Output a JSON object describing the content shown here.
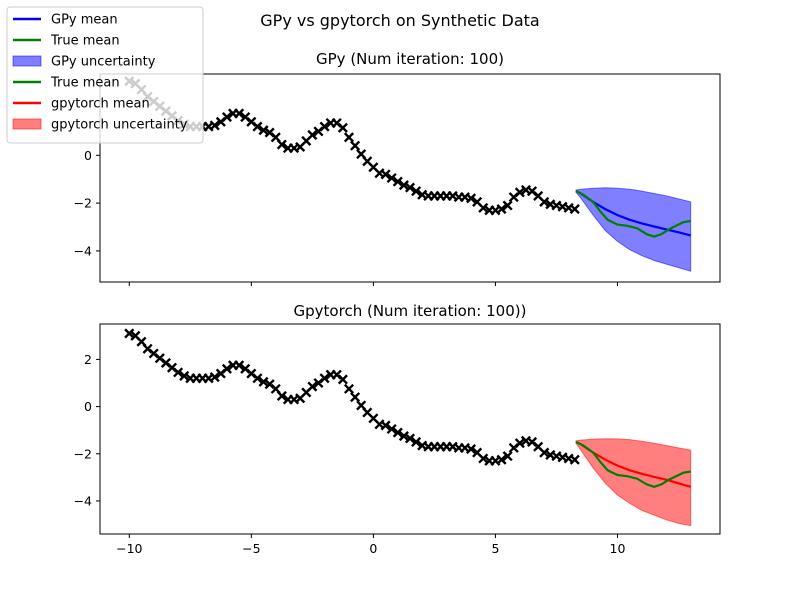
{
  "figure": {
    "title": "GPy vs gpytorch on Synthetic Data",
    "colors": {
      "gpy_mean": "#0000ff",
      "true_mean": "#008000",
      "gpy_fill": "#0000ff",
      "gpytorch_mean": "#ff0000",
      "gpytorch_fill": "#ff0000",
      "observations": "#000000"
    }
  },
  "legend": {
    "placement": "top-left",
    "entries": [
      {
        "label": "GPy mean",
        "kind": "line",
        "color": "#0000ff"
      },
      {
        "label": "True mean",
        "kind": "line",
        "color": "#008000"
      },
      {
        "label": "GPy uncertainty",
        "kind": "patch",
        "color": "#0000ff"
      },
      {
        "label": "True mean",
        "kind": "line",
        "color": "#008000"
      },
      {
        "label": "gpytorch mean",
        "kind": "line",
        "color": "#ff0000"
      },
      {
        "label": "gpytorch uncertainty",
        "kind": "patch",
        "color": "#ff0000"
      }
    ]
  },
  "chart_data": [
    {
      "type": "line",
      "title": "GPy (Num iteration: 100)",
      "xlim": [
        -11.2,
        14.2
      ],
      "ylim": [
        -5.3,
        3.4
      ],
      "xticks": [
        -10,
        -5,
        0,
        5,
        10
      ],
      "xtick_labels": [
        "",
        "",
        "",
        "",
        ""
      ],
      "yticks": [
        -4,
        -2,
        0
      ],
      "ytick_labels": [
        "−4",
        "−2",
        "0"
      ],
      "grid": false,
      "observations": {
        "marker": "x",
        "x": [
          -10.0,
          -9.75,
          -9.5,
          -9.25,
          -9.0,
          -8.75,
          -8.5,
          -8.25,
          -8.0,
          -7.75,
          -7.5,
          -7.25,
          -7.0,
          -6.75,
          -6.5,
          -6.25,
          -6.0,
          -5.75,
          -5.5,
          -5.25,
          -5.0,
          -4.75,
          -4.5,
          -4.25,
          -4.0,
          -3.75,
          -3.5,
          -3.25,
          -3.0,
          -2.75,
          -2.5,
          -2.25,
          -2.0,
          -1.75,
          -1.5,
          -1.25,
          -1.0,
          -0.75,
          -0.5,
          -0.25,
          0.0,
          0.25,
          0.5,
          0.75,
          1.0,
          1.25,
          1.5,
          1.75,
          2.0,
          2.25,
          2.5,
          2.75,
          3.0,
          3.25,
          3.5,
          3.75,
          4.0,
          4.25,
          4.5,
          4.75,
          5.0,
          5.25,
          5.5,
          5.75,
          6.0,
          6.25,
          6.5,
          6.75,
          7.0,
          7.25,
          7.5,
          7.75,
          8.0,
          8.25
        ],
        "y": [
          3.1,
          3.0,
          2.75,
          2.45,
          2.25,
          2.05,
          1.85,
          1.65,
          1.45,
          1.3,
          1.2,
          1.2,
          1.2,
          1.2,
          1.25,
          1.4,
          1.6,
          1.75,
          1.75,
          1.6,
          1.4,
          1.2,
          1.05,
          0.95,
          0.75,
          0.45,
          0.3,
          0.3,
          0.35,
          0.6,
          0.85,
          1.0,
          1.2,
          1.35,
          1.35,
          1.15,
          0.75,
          0.4,
          0.05,
          -0.25,
          -0.5,
          -0.75,
          -0.8,
          -0.95,
          -1.1,
          -1.25,
          -1.35,
          -1.5,
          -1.65,
          -1.7,
          -1.7,
          -1.7,
          -1.7,
          -1.7,
          -1.75,
          -1.75,
          -1.8,
          -1.95,
          -2.2,
          -2.3,
          -2.3,
          -2.25,
          -2.1,
          -1.75,
          -1.55,
          -1.45,
          -1.5,
          -1.7,
          -1.95,
          -2.05,
          -2.1,
          -2.15,
          -2.2,
          -2.25
        ]
      },
      "series": [
        {
          "name": "GPy mean",
          "color": "#0000ff",
          "x": [
            8.3,
            8.5,
            9.0,
            9.5,
            10.0,
            10.5,
            11.0,
            11.5,
            12.0,
            12.5,
            13.0
          ],
          "y": [
            -1.5,
            -1.6,
            -1.95,
            -2.25,
            -2.5,
            -2.7,
            -2.85,
            -2.98,
            -3.1,
            -3.22,
            -3.35
          ]
        },
        {
          "name": "True mean",
          "color": "#008000",
          "x": [
            8.3,
            8.6,
            9.0,
            9.3,
            9.6,
            10.0,
            10.4,
            10.8,
            11.2,
            11.5,
            11.8,
            12.1,
            12.4,
            12.7,
            13.0
          ],
          "y": [
            -1.5,
            -1.65,
            -1.95,
            -2.35,
            -2.7,
            -2.9,
            -2.95,
            -3.05,
            -3.3,
            -3.4,
            -3.3,
            -3.1,
            -2.95,
            -2.8,
            -2.75
          ]
        }
      ],
      "bands": [
        {
          "name": "GPy uncertainty",
          "color": "#0000ff",
          "x": [
            8.3,
            8.5,
            9.0,
            9.5,
            10.0,
            10.5,
            11.0,
            11.5,
            12.0,
            12.5,
            13.0
          ],
          "upper": [
            -1.45,
            -1.42,
            -1.38,
            -1.36,
            -1.38,
            -1.42,
            -1.5,
            -1.6,
            -1.7,
            -1.82,
            -1.95
          ],
          "lower": [
            -1.55,
            -1.8,
            -2.5,
            -3.15,
            -3.6,
            -3.95,
            -4.2,
            -4.4,
            -4.55,
            -4.7,
            -4.85
          ]
        }
      ]
    },
    {
      "type": "line",
      "title": "Gpytorch (Num iteration: 100))",
      "xlim": [
        -11.2,
        14.2
      ],
      "ylim": [
        -5.4,
        3.5
      ],
      "xticks": [
        -10,
        -5,
        0,
        5,
        10
      ],
      "xtick_labels": [
        "−10",
        "−5",
        "0",
        "5",
        "10"
      ],
      "yticks": [
        -4,
        -2,
        0,
        2
      ],
      "ytick_labels": [
        "−4",
        "−2",
        "0",
        "2"
      ],
      "grid": false,
      "observations": {
        "marker": "x",
        "x": [
          -10.0,
          -9.75,
          -9.5,
          -9.25,
          -9.0,
          -8.75,
          -8.5,
          -8.25,
          -8.0,
          -7.75,
          -7.5,
          -7.25,
          -7.0,
          -6.75,
          -6.5,
          -6.25,
          -6.0,
          -5.75,
          -5.5,
          -5.25,
          -5.0,
          -4.75,
          -4.5,
          -4.25,
          -4.0,
          -3.75,
          -3.5,
          -3.25,
          -3.0,
          -2.75,
          -2.5,
          -2.25,
          -2.0,
          -1.75,
          -1.5,
          -1.25,
          -1.0,
          -0.75,
          -0.5,
          -0.25,
          0.0,
          0.25,
          0.5,
          0.75,
          1.0,
          1.25,
          1.5,
          1.75,
          2.0,
          2.25,
          2.5,
          2.75,
          3.0,
          3.25,
          3.5,
          3.75,
          4.0,
          4.25,
          4.5,
          4.75,
          5.0,
          5.25,
          5.5,
          5.75,
          6.0,
          6.25,
          6.5,
          6.75,
          7.0,
          7.25,
          7.5,
          7.75,
          8.0,
          8.25
        ],
        "y": [
          3.1,
          3.0,
          2.75,
          2.45,
          2.25,
          2.05,
          1.85,
          1.65,
          1.45,
          1.3,
          1.2,
          1.2,
          1.2,
          1.2,
          1.25,
          1.4,
          1.6,
          1.75,
          1.75,
          1.6,
          1.4,
          1.2,
          1.05,
          0.95,
          0.75,
          0.45,
          0.3,
          0.3,
          0.35,
          0.6,
          0.85,
          1.0,
          1.2,
          1.35,
          1.35,
          1.15,
          0.75,
          0.4,
          0.05,
          -0.25,
          -0.5,
          -0.75,
          -0.8,
          -0.95,
          -1.1,
          -1.25,
          -1.35,
          -1.5,
          -1.65,
          -1.7,
          -1.7,
          -1.7,
          -1.7,
          -1.7,
          -1.75,
          -1.75,
          -1.8,
          -1.95,
          -2.2,
          -2.3,
          -2.3,
          -2.25,
          -2.1,
          -1.75,
          -1.55,
          -1.45,
          -1.5,
          -1.7,
          -1.95,
          -2.05,
          -2.1,
          -2.15,
          -2.2,
          -2.25
        ]
      },
      "series": [
        {
          "name": "gpytorch mean",
          "color": "#ff0000",
          "x": [
            8.3,
            8.5,
            9.0,
            9.5,
            10.0,
            10.5,
            11.0,
            11.5,
            12.0,
            12.5,
            13.0
          ],
          "y": [
            -1.5,
            -1.6,
            -1.95,
            -2.25,
            -2.5,
            -2.7,
            -2.85,
            -2.98,
            -3.1,
            -3.25,
            -3.4
          ]
        },
        {
          "name": "True mean",
          "color": "#008000",
          "x": [
            8.3,
            8.6,
            9.0,
            9.3,
            9.6,
            10.0,
            10.4,
            10.8,
            11.2,
            11.5,
            11.8,
            12.1,
            12.4,
            12.7,
            13.0
          ],
          "y": [
            -1.5,
            -1.65,
            -1.95,
            -2.35,
            -2.7,
            -2.9,
            -2.95,
            -3.05,
            -3.3,
            -3.4,
            -3.3,
            -3.1,
            -2.95,
            -2.8,
            -2.75
          ]
        }
      ],
      "bands": [
        {
          "name": "gpytorch uncertainty",
          "color": "#ff0000",
          "x": [
            8.3,
            8.5,
            9.0,
            9.5,
            10.0,
            10.5,
            11.0,
            11.5,
            12.0,
            12.5,
            13.0
          ],
          "upper": [
            -1.45,
            -1.42,
            -1.38,
            -1.36,
            -1.37,
            -1.4,
            -1.47,
            -1.55,
            -1.65,
            -1.75,
            -1.85
          ],
          "lower": [
            -1.55,
            -1.85,
            -2.6,
            -3.25,
            -3.75,
            -4.1,
            -4.4,
            -4.6,
            -4.8,
            -4.95,
            -5.05
          ]
        }
      ]
    }
  ]
}
